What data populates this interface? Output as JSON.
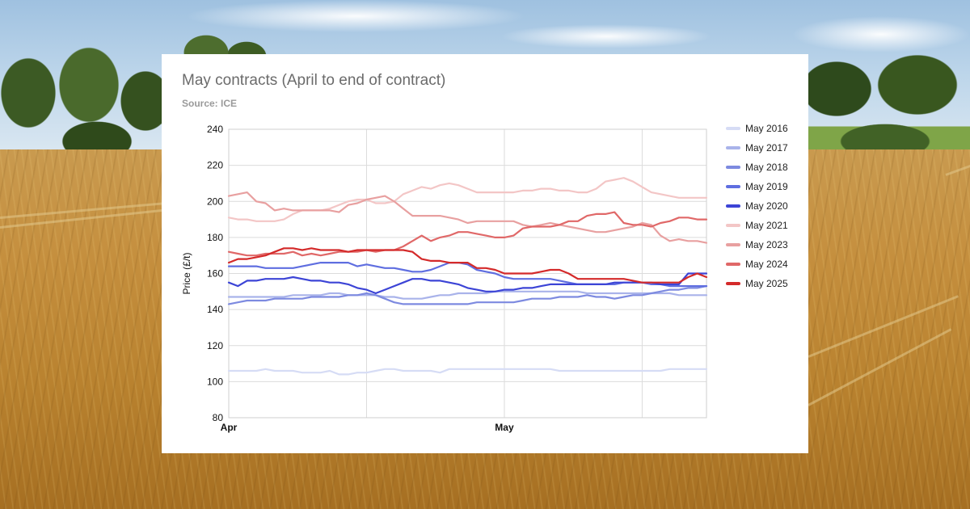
{
  "chart_data": {
    "type": "line",
    "title": "May contracts (April to end of contract)",
    "subtitle": "Source: ICE",
    "xlabel": "",
    "ylabel": "Price (£/t)",
    "ylim": [
      80,
      240
    ],
    "yticks": [
      80,
      100,
      120,
      140,
      160,
      180,
      200,
      220,
      240
    ],
    "xticks": [
      {
        "label": "Apr",
        "day": 0
      },
      {
        "label": "May",
        "day": 30
      }
    ],
    "x_range_days": [
      0,
      52
    ],
    "grid": true,
    "legend_position": "right",
    "x": [
      0,
      1,
      2,
      3,
      4,
      5,
      6,
      7,
      8,
      9,
      10,
      11,
      12,
      13,
      14,
      15,
      16,
      17,
      18,
      19,
      20,
      21,
      22,
      23,
      24,
      25,
      26,
      27,
      28,
      29,
      30,
      31,
      32,
      33,
      34,
      35,
      36,
      37,
      38,
      39,
      40,
      41,
      42,
      43,
      44,
      45,
      46,
      47,
      48,
      49,
      50,
      51,
      52
    ],
    "series": [
      {
        "name": "May 2016",
        "color": "#d6dcf5",
        "values": [
          106,
          106,
          106,
          106,
          107,
          106,
          106,
          106,
          105,
          105,
          105,
          106,
          104,
          104,
          105,
          105,
          106,
          107,
          107,
          106,
          106,
          106,
          106,
          105,
          107,
          107,
          107,
          107,
          107,
          107,
          107,
          107,
          107,
          107,
          107,
          107,
          106,
          106,
          106,
          106,
          106,
          106,
          106,
          106,
          106,
          106,
          106,
          106,
          107,
          107,
          107,
          107,
          107
        ]
      },
      {
        "name": "May 2017",
        "color": "#a9b3ea",
        "values": [
          147,
          147,
          147,
          147,
          147,
          147,
          147,
          148,
          148,
          148,
          148,
          149,
          149,
          148,
          148,
          148,
          148,
          147,
          147,
          146,
          146,
          146,
          147,
          148,
          148,
          149,
          149,
          149,
          149,
          150,
          150,
          150,
          150,
          150,
          150,
          150,
          150,
          150,
          150,
          149,
          149,
          149,
          149,
          149,
          149,
          149,
          149,
          149,
          149,
          148,
          148,
          148,
          148
        ]
      },
      {
        "name": "May 2018",
        "color": "#7d8ae0",
        "values": [
          143,
          144,
          145,
          145,
          145,
          146,
          146,
          146,
          146,
          147,
          147,
          147,
          147,
          148,
          148,
          149,
          148,
          146,
          144,
          143,
          143,
          143,
          143,
          143,
          143,
          143,
          143,
          144,
          144,
          144,
          144,
          144,
          145,
          146,
          146,
          146,
          147,
          147,
          147,
          148,
          147,
          147,
          146,
          147,
          148,
          148,
          149,
          150,
          151,
          151,
          152,
          152,
          153
        ]
      },
      {
        "name": "May 2019",
        "color": "#5f6ee0",
        "values": [
          164,
          164,
          164,
          164,
          163,
          163,
          163,
          163,
          164,
          165,
          166,
          166,
          166,
          166,
          164,
          165,
          164,
          163,
          163,
          162,
          161,
          161,
          162,
          164,
          166,
          166,
          165,
          162,
          161,
          160,
          158,
          157,
          157,
          157,
          157,
          157,
          156,
          155,
          154,
          154,
          154,
          154,
          154,
          155,
          155,
          155,
          154,
          154,
          153,
          153,
          153,
          153,
          153
        ]
      },
      {
        "name": "May 2020",
        "color": "#3c44d6",
        "values": [
          155,
          153,
          156,
          156,
          157,
          157,
          157,
          158,
          157,
          156,
          156,
          155,
          155,
          154,
          152,
          151,
          149,
          151,
          153,
          155,
          157,
          157,
          156,
          156,
          155,
          154,
          152,
          151,
          150,
          150,
          151,
          151,
          152,
          152,
          153,
          154,
          154,
          154,
          154,
          154,
          154,
          154,
          155,
          155,
          155,
          155,
          155,
          154,
          154,
          154,
          160,
          160,
          160
        ]
      },
      {
        "name": "May 2021",
        "color": "#f3c6c6",
        "values": [
          191,
          190,
          190,
          189,
          189,
          189,
          190,
          193,
          195,
          195,
          195,
          196,
          198,
          200,
          201,
          201,
          199,
          199,
          200,
          204,
          206,
          208,
          207,
          209,
          210,
          209,
          207,
          205,
          205,
          205,
          205,
          205,
          206,
          206,
          207,
          207,
          206,
          206,
          205,
          205,
          207,
          211,
          212,
          213,
          211,
          208,
          205,
          204,
          203,
          202,
          202,
          202,
          202
        ]
      },
      {
        "name": "May 2023",
        "color": "#e8a0a0",
        "values": [
          203,
          204,
          205,
          200,
          199,
          195,
          196,
          195,
          195,
          195,
          195,
          195,
          194,
          198,
          199,
          201,
          202,
          203,
          200,
          196,
          192,
          192,
          192,
          192,
          191,
          190,
          188,
          189,
          189,
          189,
          189,
          189,
          187,
          186,
          187,
          188,
          187,
          186,
          185,
          184,
          183,
          183,
          184,
          185,
          186,
          188,
          187,
          181,
          178,
          179,
          178,
          178,
          177
        ]
      },
      {
        "name": "May 2024",
        "color": "#e06868",
        "values": [
          172,
          171,
          170,
          170,
          171,
          171,
          171,
          172,
          170,
          171,
          170,
          171,
          172,
          172,
          172,
          173,
          172,
          173,
          173,
          175,
          178,
          181,
          178,
          180,
          181,
          183,
          183,
          182,
          181,
          180,
          180,
          181,
          185,
          186,
          186,
          186,
          187,
          189,
          189,
          192,
          193,
          193,
          194,
          188,
          187,
          187,
          186,
          188,
          189,
          191,
          191,
          190,
          190
        ]
      },
      {
        "name": "May 2025",
        "color": "#d42a2a",
        "values": [
          166,
          168,
          168,
          169,
          170,
          172,
          174,
          174,
          173,
          174,
          173,
          173,
          173,
          172,
          173,
          173,
          173,
          173,
          173,
          173,
          172,
          168,
          167,
          167,
          166,
          166,
          166,
          163,
          163,
          162,
          160,
          160,
          160,
          160,
          161,
          162,
          162,
          160,
          157,
          157,
          157,
          157,
          157,
          157,
          156,
          155,
          155,
          155,
          155,
          155,
          158,
          160,
          158
        ]
      }
    ]
  }
}
